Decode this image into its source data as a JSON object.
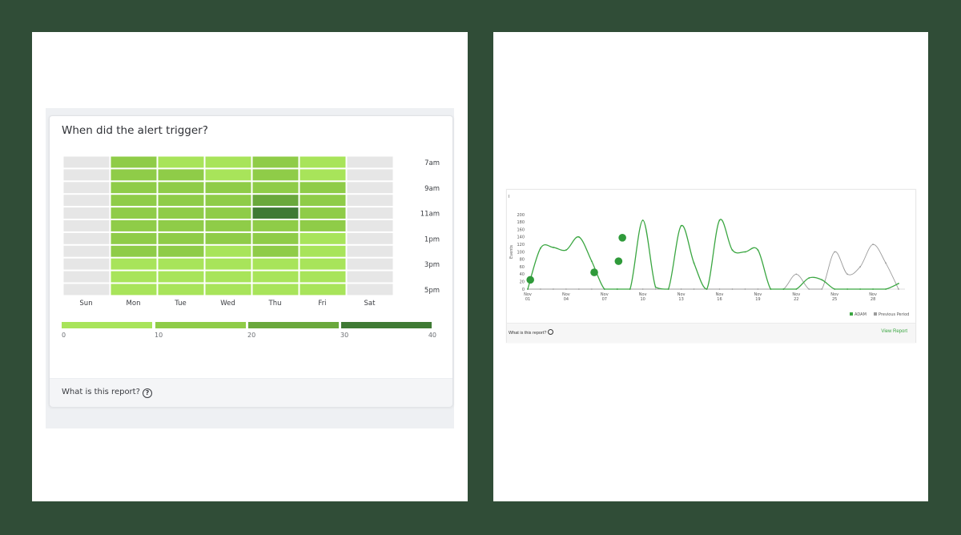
{
  "colors": {
    "background": "#304d37",
    "empty_cell": "#e6e6e6",
    "scale": [
      "#a8e45a",
      "#8fcc48",
      "#6aa83c",
      "#3f7a34"
    ],
    "current": "#3aa641",
    "previous": "#9b9b9b"
  },
  "heatmap": {
    "title": "When did the alert trigger?",
    "footer": "What is this report?",
    "chart_data": {
      "type": "heatmap",
      "x_categories": [
        "Sun",
        "Mon",
        "Tue",
        "Wed",
        "Thu",
        "Fri",
        "Sat"
      ],
      "y_labels": [
        {
          "row": 0,
          "label": "7am"
        },
        {
          "row": 2,
          "label": "9am"
        },
        {
          "row": 4,
          "label": "11am"
        },
        {
          "row": 6,
          "label": "1pm"
        },
        {
          "row": 8,
          "label": "3pm"
        },
        {
          "row": 10,
          "label": "5pm"
        }
      ],
      "rows": 11,
      "values": [
        [
          null,
          15,
          5,
          5,
          15,
          5,
          null
        ],
        [
          null,
          15,
          15,
          5,
          15,
          5,
          null
        ],
        [
          null,
          15,
          15,
          15,
          15,
          15,
          null
        ],
        [
          null,
          15,
          15,
          15,
          25,
          15,
          null
        ],
        [
          null,
          15,
          15,
          15,
          35,
          15,
          null
        ],
        [
          null,
          15,
          15,
          15,
          15,
          15,
          null
        ],
        [
          null,
          15,
          15,
          15,
          15,
          5,
          null
        ],
        [
          null,
          15,
          15,
          5,
          15,
          5,
          null
        ],
        [
          null,
          5,
          5,
          5,
          5,
          5,
          null
        ],
        [
          null,
          5,
          5,
          5,
          5,
          5,
          null
        ],
        [
          null,
          5,
          5,
          5,
          5,
          5,
          null
        ]
      ],
      "legend_ticks": [
        0,
        10,
        20,
        30,
        40
      ]
    }
  },
  "linechart": {
    "footer": "What is this report?",
    "view_link": "View Report",
    "corner_label": "I",
    "chart_data": {
      "type": "line",
      "ylabel": "Events",
      "ylim": [
        0,
        200
      ],
      "yticks": [
        0,
        20,
        40,
        60,
        80,
        100,
        120,
        140,
        160,
        180,
        200
      ],
      "x_ticks": [
        {
          "day": 1,
          "top": "Nov",
          "bottom": "01"
        },
        {
          "day": 4,
          "top": "Nov",
          "bottom": "04"
        },
        {
          "day": 7,
          "top": "Nov",
          "bottom": "07"
        },
        {
          "day": 10,
          "top": "Nov",
          "bottom": "10"
        },
        {
          "day": 13,
          "top": "Nov",
          "bottom": "13"
        },
        {
          "day": 16,
          "top": "Nov",
          "bottom": "16"
        },
        {
          "day": 19,
          "top": "Nov",
          "bottom": "19"
        },
        {
          "day": 22,
          "top": "Nov",
          "bottom": "22"
        },
        {
          "day": 25,
          "top": "Nov",
          "bottom": "25"
        },
        {
          "day": 28,
          "top": "Nov",
          "bottom": "28"
        }
      ],
      "x_range": [
        1,
        30.5
      ],
      "series": [
        {
          "name": "ADAM",
          "color": "#3aa641",
          "x": [
            1,
            2,
            3,
            4,
            5,
            6,
            7,
            8,
            9,
            10,
            11,
            12,
            13,
            14,
            15,
            16,
            17,
            18,
            19,
            20,
            21,
            22,
            23,
            24,
            25,
            26,
            27,
            28,
            29,
            30
          ],
          "values": [
            0,
            110,
            112,
            105,
            140,
            75,
            0,
            0,
            0,
            185,
            5,
            0,
            170,
            70,
            0,
            185,
            105,
            100,
            105,
            0,
            0,
            0,
            30,
            25,
            0,
            0,
            0,
            0,
            0,
            15
          ]
        },
        {
          "name": "Previous Period",
          "color": "#9b9b9b",
          "x": [
            1,
            2,
            3,
            4,
            5,
            6,
            7,
            8,
            9,
            10,
            11,
            12,
            13,
            14,
            15,
            16,
            17,
            18,
            19,
            20,
            21,
            22,
            23,
            24,
            25,
            26,
            27,
            28,
            29,
            30
          ],
          "values": [
            0,
            0,
            0,
            0,
            0,
            0,
            0,
            0,
            0,
            0,
            0,
            0,
            0,
            0,
            0,
            0,
            0,
            0,
            0,
            0,
            0,
            40,
            0,
            0,
            100,
            40,
            60,
            120,
            70,
            0
          ]
        }
      ],
      "highlights": [
        {
          "day": 1.2,
          "value": 25
        },
        {
          "day": 6.2,
          "value": 45
        },
        {
          "day": 8.1,
          "value": 75
        },
        {
          "day": 8.4,
          "value": 138
        }
      ]
    }
  }
}
